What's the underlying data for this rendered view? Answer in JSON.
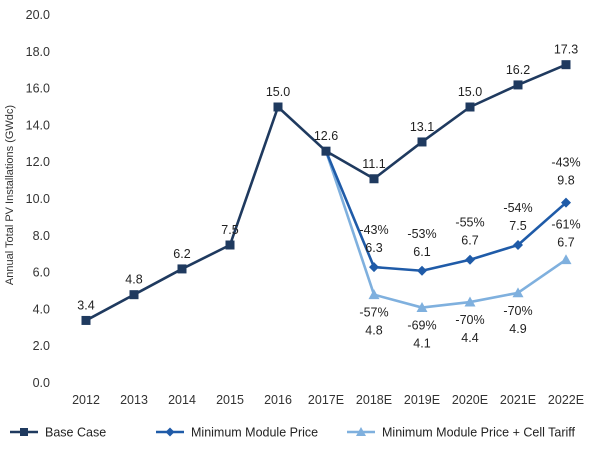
{
  "chart_data": {
    "type": "line",
    "title": "",
    "xlabel": "",
    "ylabel": "Annual Total PV Installations (GWdc)",
    "ylim": [
      0,
      20
    ],
    "yticks": [
      "0.0",
      "2.0",
      "4.0",
      "6.0",
      "8.0",
      "10.0",
      "12.0",
      "14.0",
      "16.0",
      "18.0",
      "20.0"
    ],
    "categories": [
      "2012",
      "2013",
      "2014",
      "2015",
      "2016",
      "2017E",
      "2018E",
      "2019E",
      "2020E",
      "2021E",
      "2022E"
    ],
    "grid": false,
    "legend_position": "bottom",
    "series": [
      {
        "name": "Base Case",
        "color": "#1f3a5f",
        "marker": "square",
        "values": [
          3.4,
          4.8,
          6.2,
          7.5,
          15.0,
          12.6,
          11.1,
          13.1,
          15.0,
          16.2,
          17.3
        ],
        "labels": [
          "3.4",
          "4.8",
          "6.2",
          "7.5",
          "15.0",
          "12.6",
          "11.1",
          "13.1",
          "15.0",
          "16.2",
          "17.3"
        ]
      },
      {
        "name": "Minimum Module Price",
        "color": "#1f5ba8",
        "marker": "diamond",
        "values": [
          null,
          null,
          null,
          null,
          null,
          12.6,
          6.3,
          6.1,
          6.7,
          7.5,
          9.8
        ],
        "labels": [
          null,
          null,
          null,
          null,
          null,
          null,
          "-43%\n6.3",
          "-53%\n6.1",
          "-55%\n6.7",
          "-54%\n7.5",
          "-43%\n9.8"
        ]
      },
      {
        "name": "Minimum Module Price + Cell Tariff",
        "color": "#7fb0de",
        "marker": "triangle",
        "values": [
          null,
          null,
          null,
          null,
          null,
          12.6,
          4.8,
          4.1,
          4.4,
          4.9,
          6.7
        ],
        "labels": [
          null,
          null,
          null,
          null,
          null,
          null,
          "-57%\n4.8",
          "-69%\n4.1",
          "-70%\n4.4",
          "-70%\n4.9",
          "-61%\n6.7"
        ]
      }
    ]
  }
}
